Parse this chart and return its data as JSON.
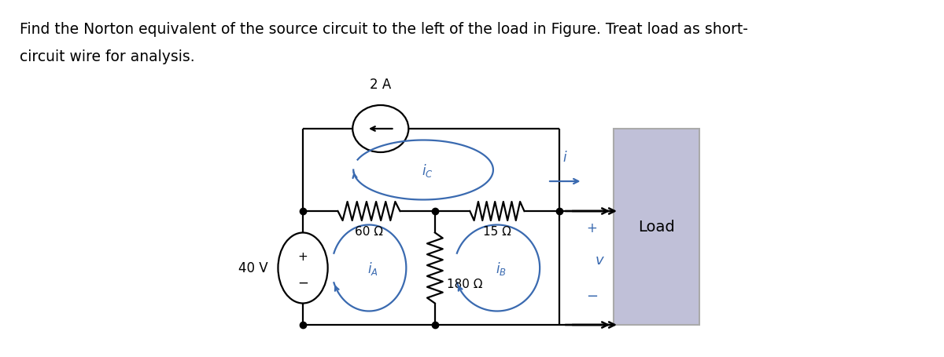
{
  "bg_color": "#ffffff",
  "cc": "#000000",
  "bc": "#3a6ab0",
  "load_fill": "#c0c0d8",
  "load_edge": "#aaaaaa",
  "title1": "Find the Norton equivalent of the source circuit to the left of the load in Figure. Treat load as short-",
  "title2": "circuit wire for analysis.",
  "title_fs": 13.5,
  "lbl_2A": "2 A",
  "lbl_60": "60 Ω",
  "lbl_15": "15 Ω",
  "lbl_180": "180 Ω",
  "lbl_40V": "40 V",
  "lbl_load": "Load",
  "lbl_iC": "$i_C$",
  "lbl_iA": "$i_A$",
  "lbl_iB": "$i_B$",
  "lbl_i": "$i$",
  "lbl_v": "$v$"
}
